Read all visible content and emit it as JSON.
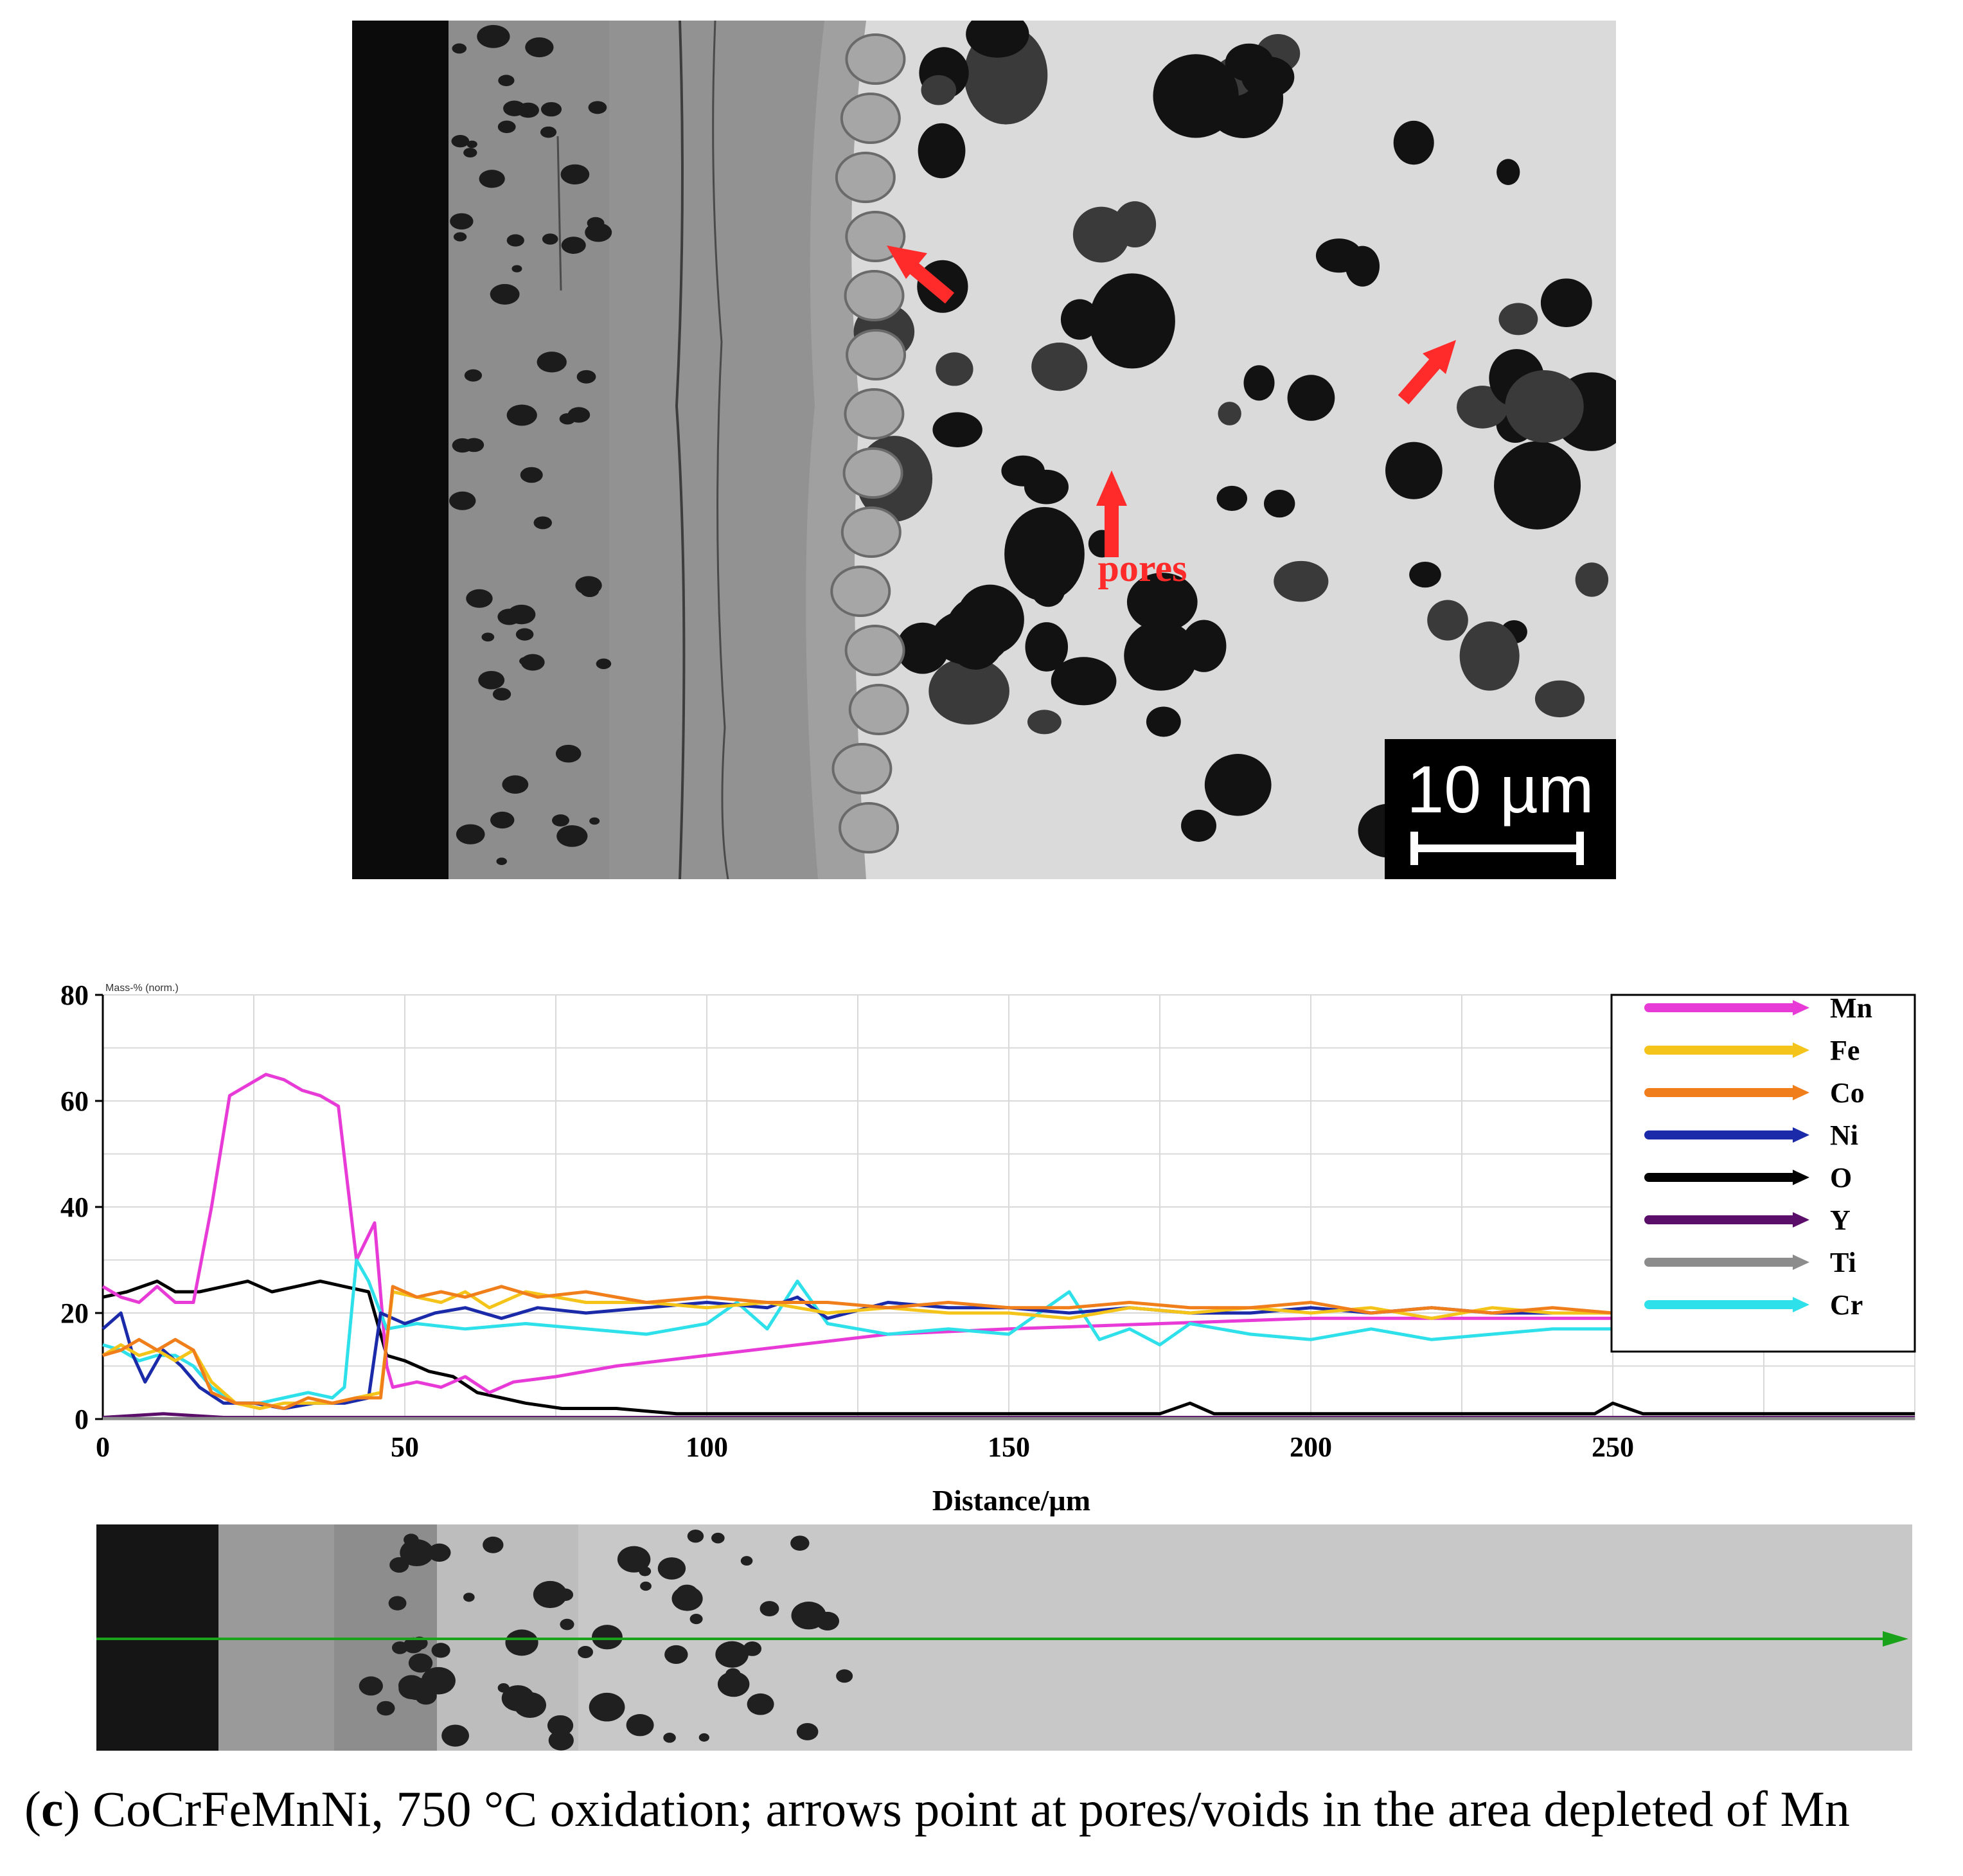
{
  "micrograph": {
    "annotation": "pores",
    "scale_bar_label": "10 µm",
    "arrow_color": "#ff2a2a"
  },
  "chart_data": {
    "type": "line",
    "unit_label": "Mass-% (norm.)",
    "xlabel": "Distance/µm",
    "ylabel": "",
    "xlim": [
      0,
      300
    ],
    "ylim": [
      0,
      80
    ],
    "xticks": [
      0,
      50,
      100,
      150,
      200,
      250
    ],
    "yticks": [
      0,
      20,
      40,
      60,
      80
    ],
    "grid": true,
    "legend_position": "top-right",
    "series": [
      {
        "name": "Mn",
        "color": "#e83ad6",
        "points": [
          [
            0,
            25
          ],
          [
            3,
            23
          ],
          [
            6,
            22
          ],
          [
            9,
            25
          ],
          [
            12,
            22
          ],
          [
            15,
            22
          ],
          [
            18,
            40
          ],
          [
            21,
            61
          ],
          [
            24,
            63
          ],
          [
            27,
            65
          ],
          [
            30,
            64
          ],
          [
            33,
            62
          ],
          [
            36,
            61
          ],
          [
            39,
            59
          ],
          [
            42,
            30
          ],
          [
            45,
            37
          ],
          [
            47,
            10
          ],
          [
            48,
            6
          ],
          [
            52,
            7
          ],
          [
            56,
            6
          ],
          [
            60,
            8
          ],
          [
            64,
            5
          ],
          [
            68,
            7
          ],
          [
            75,
            8
          ],
          [
            85,
            10
          ],
          [
            100,
            12
          ],
          [
            115,
            14
          ],
          [
            130,
            16
          ],
          [
            150,
            17
          ],
          [
            175,
            18
          ],
          [
            200,
            19
          ],
          [
            225,
            19
          ],
          [
            250,
            19
          ],
          [
            260,
            18
          ]
        ]
      },
      {
        "name": "Fe",
        "color": "#f5c41a",
        "points": [
          [
            0,
            12
          ],
          [
            3,
            14
          ],
          [
            6,
            12
          ],
          [
            9,
            13
          ],
          [
            12,
            11
          ],
          [
            15,
            13
          ],
          [
            18,
            7
          ],
          [
            22,
            3
          ],
          [
            26,
            2
          ],
          [
            30,
            3
          ],
          [
            34,
            3
          ],
          [
            38,
            3
          ],
          [
            42,
            4
          ],
          [
            46,
            5
          ],
          [
            48,
            24
          ],
          [
            52,
            23
          ],
          [
            56,
            22
          ],
          [
            60,
            24
          ],
          [
            64,
            21
          ],
          [
            70,
            24
          ],
          [
            80,
            22
          ],
          [
            90,
            22
          ],
          [
            100,
            21
          ],
          [
            110,
            22
          ],
          [
            120,
            20
          ],
          [
            130,
            21
          ],
          [
            140,
            20
          ],
          [
            150,
            20
          ],
          [
            160,
            19
          ],
          [
            170,
            21
          ],
          [
            180,
            20
          ],
          [
            190,
            21
          ],
          [
            200,
            20
          ],
          [
            210,
            21
          ],
          [
            220,
            19
          ],
          [
            230,
            21
          ],
          [
            240,
            20
          ],
          [
            250,
            20
          ],
          [
            260,
            19
          ]
        ]
      },
      {
        "name": "Co",
        "color": "#f07f1b",
        "points": [
          [
            0,
            12
          ],
          [
            3,
            13
          ],
          [
            6,
            15
          ],
          [
            9,
            13
          ],
          [
            12,
            15
          ],
          [
            15,
            13
          ],
          [
            18,
            5
          ],
          [
            22,
            3
          ],
          [
            26,
            3
          ],
          [
            30,
            2
          ],
          [
            34,
            4
          ],
          [
            38,
            3
          ],
          [
            42,
            4
          ],
          [
            46,
            4
          ],
          [
            48,
            25
          ],
          [
            52,
            23
          ],
          [
            56,
            24
          ],
          [
            60,
            23
          ],
          [
            66,
            25
          ],
          [
            72,
            23
          ],
          [
            80,
            24
          ],
          [
            90,
            22
          ],
          [
            100,
            23
          ],
          [
            110,
            22
          ],
          [
            120,
            22
          ],
          [
            130,
            21
          ],
          [
            140,
            22
          ],
          [
            150,
            21
          ],
          [
            160,
            21
          ],
          [
            170,
            22
          ],
          [
            180,
            21
          ],
          [
            190,
            21
          ],
          [
            200,
            22
          ],
          [
            210,
            20
          ],
          [
            220,
            21
          ],
          [
            230,
            20
          ],
          [
            240,
            21
          ],
          [
            250,
            20
          ],
          [
            260,
            20
          ]
        ]
      },
      {
        "name": "Ni",
        "color": "#1a2aa8",
        "points": [
          [
            0,
            17
          ],
          [
            3,
            20
          ],
          [
            5,
            12
          ],
          [
            7,
            7
          ],
          [
            10,
            13
          ],
          [
            13,
            10
          ],
          [
            16,
            6
          ],
          [
            20,
            3
          ],
          [
            25,
            3
          ],
          [
            30,
            2
          ],
          [
            35,
            3
          ],
          [
            40,
            3
          ],
          [
            44,
            4
          ],
          [
            46,
            20
          ],
          [
            50,
            18
          ],
          [
            55,
            20
          ],
          [
            60,
            21
          ],
          [
            66,
            19
          ],
          [
            72,
            21
          ],
          [
            80,
            20
          ],
          [
            90,
            21
          ],
          [
            100,
            22
          ],
          [
            110,
            21
          ],
          [
            115,
            23
          ],
          [
            120,
            19
          ],
          [
            130,
            22
          ],
          [
            140,
            21
          ],
          [
            150,
            21
          ],
          [
            160,
            20
          ],
          [
            170,
            21
          ],
          [
            180,
            20
          ],
          [
            190,
            20
          ],
          [
            200,
            21
          ],
          [
            210,
            20
          ],
          [
            220,
            21
          ],
          [
            230,
            20
          ],
          [
            240,
            20
          ],
          [
            250,
            20
          ],
          [
            260,
            21
          ]
        ]
      },
      {
        "name": "O",
        "color": "#000000",
        "points": [
          [
            0,
            23
          ],
          [
            4,
            24
          ],
          [
            9,
            26
          ],
          [
            12,
            24
          ],
          [
            16,
            24
          ],
          [
            20,
            25
          ],
          [
            24,
            26
          ],
          [
            28,
            24
          ],
          [
            32,
            25
          ],
          [
            36,
            26
          ],
          [
            40,
            25
          ],
          [
            44,
            24
          ],
          [
            47,
            12
          ],
          [
            50,
            11
          ],
          [
            54,
            9
          ],
          [
            58,
            8
          ],
          [
            62,
            5
          ],
          [
            66,
            4
          ],
          [
            70,
            3
          ],
          [
            76,
            2
          ],
          [
            85,
            2
          ],
          [
            95,
            1
          ],
          [
            110,
            1
          ],
          [
            130,
            1
          ],
          [
            150,
            1
          ],
          [
            175,
            1
          ],
          [
            180,
            3
          ],
          [
            184,
            1
          ],
          [
            200,
            1
          ],
          [
            225,
            1
          ],
          [
            247,
            1
          ],
          [
            250,
            3
          ],
          [
            255,
            1
          ],
          [
            260,
            1
          ],
          [
            300,
            1
          ]
        ]
      },
      {
        "name": "Y",
        "color": "#5a0e6a",
        "points": [
          [
            0,
            0.3
          ],
          [
            10,
            1
          ],
          [
            20,
            0.3
          ],
          [
            60,
            0.3
          ],
          [
            120,
            0.3
          ],
          [
            200,
            0.3
          ],
          [
            300,
            0.3
          ]
        ]
      },
      {
        "name": "Ti",
        "color": "#8c8c8c",
        "points": [
          [
            0,
            0.1
          ],
          [
            300,
            0.1
          ]
        ]
      },
      {
        "name": "Cr",
        "color": "#2ee0ea",
        "points": [
          [
            0,
            14
          ],
          [
            3,
            13
          ],
          [
            6,
            11
          ],
          [
            9,
            12
          ],
          [
            12,
            12
          ],
          [
            15,
            10
          ],
          [
            18,
            6
          ],
          [
            22,
            3
          ],
          [
            26,
            3
          ],
          [
            30,
            4
          ],
          [
            34,
            5
          ],
          [
            38,
            4
          ],
          [
            40,
            6
          ],
          [
            42,
            30
          ],
          [
            44,
            26
          ],
          [
            47,
            17
          ],
          [
            52,
            18
          ],
          [
            60,
            17
          ],
          [
            70,
            18
          ],
          [
            80,
            17
          ],
          [
            90,
            16
          ],
          [
            100,
            18
          ],
          [
            105,
            22
          ],
          [
            110,
            17
          ],
          [
            115,
            26
          ],
          [
            120,
            18
          ],
          [
            130,
            16
          ],
          [
            140,
            17
          ],
          [
            150,
            16
          ],
          [
            160,
            24
          ],
          [
            165,
            15
          ],
          [
            170,
            17
          ],
          [
            175,
            14
          ],
          [
            180,
            18
          ],
          [
            190,
            16
          ],
          [
            200,
            15
          ],
          [
            210,
            17
          ],
          [
            220,
            15
          ],
          [
            230,
            16
          ],
          [
            240,
            17
          ],
          [
            250,
            17
          ],
          [
            260,
            18
          ]
        ]
      }
    ]
  },
  "linescan_image": {
    "scan_line_color": "#1aa31a"
  },
  "caption": {
    "label": "c",
    "text": "CoCrFeMnNi, 750 °C oxidation; arrows point at pores/voids in the area depleted of Mn"
  }
}
